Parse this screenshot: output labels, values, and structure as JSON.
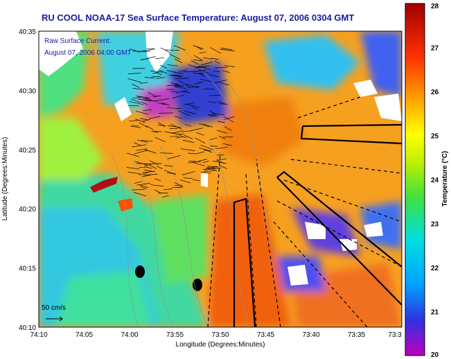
{
  "title": "RU COOL  NOAA-17  Sea Surface Temperature:  August 07, 2006 0304 GMT",
  "inset": {
    "line1": "Raw Surface Current:",
    "line2": "August 07, 2006 04:00 GMT",
    "scale_label": "50 cm/s"
  },
  "axes": {
    "xlabel": "Longitude (Degrees:Minutes)",
    "ylabel": "Latitude (Degrees:Minutes)",
    "xticks": [
      "74:10",
      "74:05",
      "74:00",
      "73:55",
      "73:50",
      "73:45",
      "73:40",
      "73:35",
      "73:3"
    ],
    "yticks": [
      "40:35",
      "40:30",
      "40:25",
      "40:20",
      "40:15",
      "40:10"
    ]
  },
  "colorbar": {
    "label": "Temperature (°C)",
    "ticks": [
      "28",
      "27",
      "26",
      "25",
      "24",
      "23",
      "22",
      "21",
      "20"
    ],
    "min": 20,
    "max": 28
  },
  "colors": {
    "title": "#1a1aa0",
    "land": "#ffffff",
    "outline": "#000000"
  }
}
